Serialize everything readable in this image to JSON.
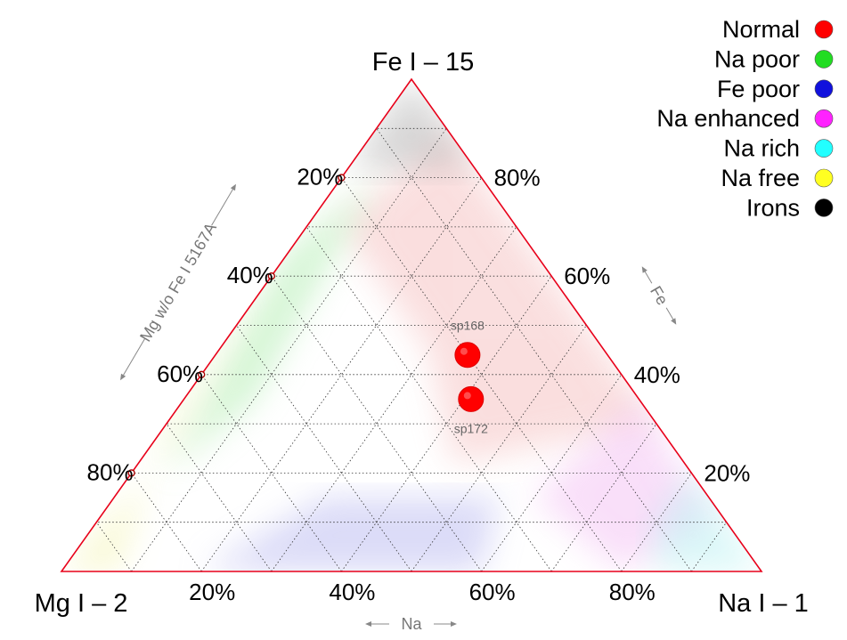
{
  "chart_data": {
    "type": "scatter",
    "subtype": "ternary",
    "vertices": {
      "top": "Fe I – 15",
      "left": "Mg I – 2",
      "right": "Na I – 1"
    },
    "axes": {
      "bottom": {
        "label": "Na",
        "ticks": [
          "20%",
          "40%",
          "60%",
          "80%"
        ]
      },
      "left": {
        "label": "Mg w/o Fe I 5167A",
        "ticks": [
          "80%",
          "60%",
          "40%",
          "20%"
        ]
      },
      "right": {
        "label": "Fe",
        "ticks": [
          "20%",
          "40%",
          "60%",
          "80%"
        ]
      }
    },
    "grid": true,
    "legend_position": "top-right",
    "legend": [
      {
        "label": "Normal",
        "color": "#ff0000"
      },
      {
        "label": "Na poor",
        "color": "#22dd22"
      },
      {
        "label": "Fe poor",
        "color": "#1111dd"
      },
      {
        "label": "Na enhanced",
        "color": "#ff22ff"
      },
      {
        "label": "Na rich",
        "color": "#22ffff"
      },
      {
        "label": "Na free",
        "color": "#ffff22"
      },
      {
        "label": "Irons",
        "color": "#000000"
      }
    ],
    "points": [
      {
        "label": "sp168",
        "class": "Normal",
        "fe": 0.44,
        "na": 0.36,
        "mg": 0.2
      },
      {
        "label": "sp172",
        "class": "Normal",
        "fe": 0.35,
        "na": 0.41,
        "mg": 0.24
      }
    ]
  }
}
